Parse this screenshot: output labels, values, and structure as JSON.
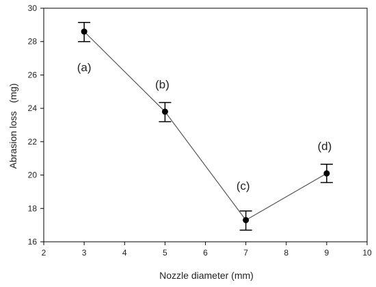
{
  "chart_data": {
    "type": "line",
    "xlabel": "Nozzle diameter (mm)",
    "ylabel": "Abrasion loss",
    "ylabel_unit": "(mg)",
    "xlim": [
      2,
      10
    ],
    "ylim": [
      16,
      30
    ],
    "x_ticks": [
      2,
      3,
      4,
      5,
      6,
      7,
      8,
      9,
      10
    ],
    "y_ticks": [
      16,
      18,
      20,
      22,
      24,
      26,
      28,
      30
    ],
    "grid": false,
    "series": [
      {
        "x": [
          3,
          5,
          7,
          9
        ],
        "y": [
          28.6,
          23.8,
          17.3,
          20.1
        ],
        "error_low": [
          28.0,
          23.2,
          16.7,
          19.55
        ],
        "error_high": [
          29.15,
          24.35,
          17.85,
          20.65
        ],
        "labels": [
          "(a)",
          "(b)",
          "(c)",
          "(d)"
        ]
      }
    ]
  }
}
